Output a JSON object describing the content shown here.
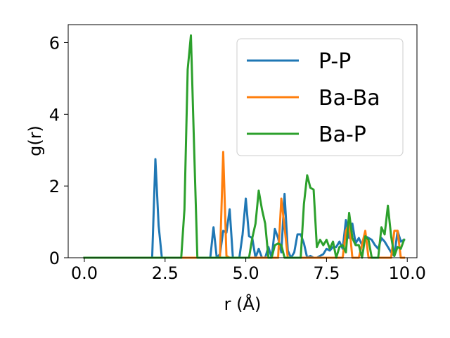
{
  "chart_data": {
    "type": "line",
    "title": "",
    "xlabel": "r (Å)",
    "ylabel": "g(r)",
    "xlim": [
      -0.5,
      10.3
    ],
    "ylim": [
      0,
      6.5
    ],
    "xticks": [
      0.0,
      2.5,
      5.0,
      7.5,
      10.0
    ],
    "xtick_labels": [
      "0.0",
      "2.5",
      "5.0",
      "7.5",
      "10.0"
    ],
    "yticks": [
      0,
      2,
      4,
      6
    ],
    "ytick_labels": [
      "0",
      "2",
      "4",
      "6"
    ],
    "grid": false,
    "legend_position": "top-right",
    "series": [
      {
        "name": "P-P",
        "color": "#1f77b4",
        "x": [
          0.0,
          2.1,
          2.2,
          2.3,
          2.4,
          2.5,
          3.9,
          4.0,
          4.1,
          4.2,
          4.3,
          4.4,
          4.5,
          4.6,
          4.8,
          4.9,
          5.0,
          5.1,
          5.2,
          5.3,
          5.4,
          5.5,
          5.6,
          5.7,
          5.8,
          5.9,
          6.0,
          6.1,
          6.2,
          6.3,
          6.4,
          6.5,
          6.6,
          6.7,
          6.8,
          6.9,
          7.0,
          7.1,
          7.2,
          7.3,
          7.4,
          7.5,
          7.6,
          7.7,
          7.8,
          7.9,
          8.0,
          8.1,
          8.2,
          8.3,
          8.4,
          8.5,
          8.6,
          8.7,
          8.8,
          8.9,
          9.0,
          9.1,
          9.2,
          9.3,
          9.4,
          9.5,
          9.6,
          9.7,
          9.8,
          9.9
        ],
        "y": [
          0.0,
          0.0,
          2.75,
          0.9,
          0.0,
          0.0,
          0.0,
          0.85,
          0.0,
          0.1,
          0.75,
          0.7,
          1.35,
          0.0,
          0.0,
          0.65,
          1.65,
          0.6,
          0.55,
          0.0,
          0.25,
          0.0,
          0.0,
          0.3,
          0.0,
          0.8,
          0.55,
          0.15,
          1.78,
          0.2,
          0.0,
          0.15,
          0.65,
          0.65,
          0.4,
          0.0,
          0.05,
          0.0,
          0.0,
          0.05,
          0.1,
          0.25,
          0.2,
          0.3,
          0.3,
          0.45,
          0.25,
          1.05,
          0.55,
          0.95,
          0.4,
          0.55,
          0.35,
          0.6,
          0.55,
          0.5,
          0.35,
          0.25,
          0.55,
          0.45,
          0.3,
          0.15,
          0.05,
          0.75,
          0.45,
          0.5
        ]
      },
      {
        "name": "Ba-Ba",
        "color": "#ff7f0e",
        "x": [
          0.0,
          4.1,
          4.2,
          4.3,
          4.4,
          4.5,
          5.9,
          6.0,
          6.1,
          6.2,
          6.3,
          7.8,
          8.0,
          8.1,
          8.2,
          8.3,
          8.5,
          8.7,
          8.8,
          8.9,
          9.0,
          9.2,
          9.5,
          9.6,
          9.7,
          9.8,
          9.9
        ],
        "y": [
          0.0,
          0.0,
          0.0,
          2.95,
          0.05,
          0.0,
          0.0,
          0.0,
          1.65,
          0.85,
          0.0,
          0.0,
          0.0,
          0.75,
          0.95,
          0.0,
          0.0,
          0.75,
          0.0,
          0.0,
          0.0,
          0.0,
          0.0,
          0.75,
          0.75,
          0.0,
          0.0
        ]
      },
      {
        "name": "Ba-P",
        "color": "#2ca02c",
        "x": [
          0.0,
          3.0,
          3.1,
          3.2,
          3.3,
          3.4,
          3.5,
          3.6,
          5.1,
          5.2,
          5.3,
          5.4,
          5.5,
          5.6,
          5.7,
          5.8,
          5.9,
          6.0,
          6.1,
          6.2,
          6.3,
          6.4,
          6.5,
          6.6,
          6.7,
          6.8,
          6.9,
          7.0,
          7.1,
          7.2,
          7.3,
          7.4,
          7.5,
          7.6,
          7.7,
          7.8,
          7.9,
          8.0,
          8.1,
          8.2,
          8.3,
          8.4,
          8.5,
          8.6,
          8.7,
          8.8,
          8.9,
          9.0,
          9.1,
          9.2,
          9.3,
          9.4,
          9.5,
          9.6,
          9.7,
          9.8,
          9.9
        ],
        "y": [
          0.0,
          0.0,
          1.35,
          5.25,
          6.2,
          3.05,
          0.0,
          0.0,
          0.0,
          0.55,
          0.95,
          1.87,
          1.35,
          0.95,
          0.0,
          0.0,
          0.35,
          0.4,
          0.35,
          0.0,
          0.0,
          0.0,
          0.0,
          0.0,
          0.0,
          1.5,
          2.3,
          1.95,
          1.9,
          0.3,
          0.5,
          0.35,
          0.5,
          0.25,
          0.45,
          0.0,
          0.3,
          0.35,
          0.15,
          1.25,
          0.55,
          0.35,
          0.35,
          0.0,
          0.6,
          0.5,
          0.0,
          0.0,
          0.0,
          0.85,
          0.65,
          1.45,
          0.6,
          0.05,
          0.3,
          0.25,
          0.5
        ]
      }
    ]
  }
}
